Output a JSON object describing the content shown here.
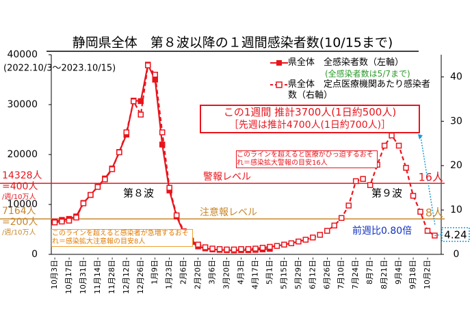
{
  "chart_data": {
    "type": "line",
    "title": "静岡県全体　第８波以降の１週間感染者数(10/15まで)",
    "subtitle": "(2022.10/3～2023.10/15)",
    "categories": [
      "10月3日-",
      null,
      "10月17日-",
      null,
      "10月31日-",
      null,
      "11月14日-",
      null,
      "11月28日-",
      null,
      "12月12日-",
      null,
      "12月26日-",
      null,
      "1月9日-",
      null,
      "1月23日-",
      null,
      "2月6日-",
      null,
      "2月20日-",
      null,
      "3月6日-",
      null,
      "3月20日-",
      null,
      "4月3日-",
      null,
      "4月17日-",
      null,
      "5月1日-",
      null,
      "5月15日-",
      null,
      "5月29日-",
      null,
      "6月12日-",
      null,
      "6月26日-",
      null,
      "7月10日-",
      null,
      "7月24日-",
      null,
      "8月7日-",
      null,
      "8月21日-",
      null,
      "9月4日-",
      null,
      "9月18日-",
      null,
      "10月2日-",
      null
    ],
    "series": [
      {
        "name": "県全体　全感染者数（左軸）",
        "note": "(全感染者数は5/7まで)",
        "color": "#e8141c",
        "style": "solid",
        "axis": "y",
        "values": [
          6600,
          6900,
          7100,
          7600,
          10300,
          11900,
          13600,
          15200,
          17200,
          20500,
          24000,
          30800,
          30700,
          38000,
          35000,
          22000,
          12800,
          7600,
          4300,
          2500,
          1600,
          1200,
          1000,
          900,
          850,
          800,
          850,
          850,
          900,
          1000,
          1100,
          null,
          null,
          null,
          null,
          null,
          null,
          null,
          null,
          null,
          null,
          null,
          null,
          null,
          null,
          null,
          null,
          null,
          null,
          null,
          null,
          null,
          null,
          null
        ]
      },
      {
        "name": "県全体　定点医療機関あたり感染者数（右軸）",
        "color": "#e8141c",
        "style": "dashed",
        "axis": "y2",
        "values": [
          7.2,
          7.4,
          7.6,
          8.3,
          11.5,
          13.4,
          15.2,
          16.9,
          19.2,
          23,
          27.5,
          34.5,
          31.5,
          42.6,
          40.5,
          27.5,
          15,
          8.8,
          5.2,
          3.1,
          2.2,
          1.6,
          1.3,
          1.2,
          1.1,
          1.1,
          1.2,
          1.2,
          1.3,
          1.5,
          1.7,
          1.9,
          2.2,
          2.5,
          2.9,
          3.3,
          3.8,
          4.4,
          5.3,
          6.5,
          8.2,
          11,
          16.5,
          17,
          15.6,
          20.2,
          24.5,
          26.8,
          24.5,
          19.5,
          13.2,
          9.6,
          5.3,
          4.24
        ]
      }
    ],
    "ylim": [
      0,
      40000
    ],
    "yticks": [
      0,
      10000,
      20000,
      30000,
      40000
    ],
    "y2lim": [
      0,
      45
    ],
    "y2ticks": [
      0,
      10,
      20,
      30,
      40
    ],
    "grid": false,
    "reference_lines": [
      {
        "label": "警報レベル",
        "value": 16,
        "color": "#e8141c",
        "left_label": [
          "14328人",
          "=400人",
          "/週/10万人"
        ],
        "right_label": "16人",
        "note": "このラインを超えると医療がひっ迫するおそれ＝感染拡大警報の目安16人"
      },
      {
        "label": "注意報レベル",
        "value": 8,
        "color": "#c8862a",
        "left_label": [
          "7164人",
          "=200人",
          "/週/10万人"
        ],
        "right_label": "8人",
        "note": "このラインを超えると感染者が急増するおそれ＝感染拡大注意報の目安8人"
      }
    ],
    "wave_labels": [
      "第８波",
      "第９波"
    ],
    "summary": [
      "この1週間 推計3700人(1日約500人)",
      "［先週は推計4700人(1日約700人)］"
    ],
    "ratio_label": "前週比0.80倍"
  }
}
